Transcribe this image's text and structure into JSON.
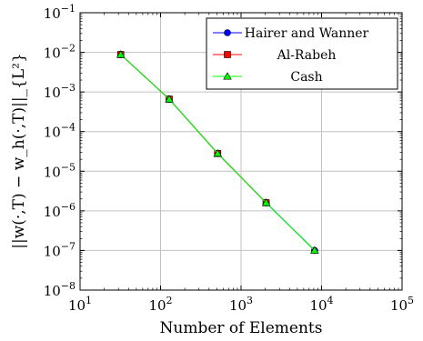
{
  "chart_data": {
    "type": "line",
    "xscale": "log",
    "yscale": "log",
    "xlabel": "Number of Elements",
    "ylabel": "||w(·,T) − w_h(·,T)||_{L²}",
    "xlim": [
      10,
      100000
    ],
    "ylim": [
      1e-08,
      0.1
    ],
    "x_ticks": [
      {
        "value": 10,
        "base": "10",
        "exp": "1"
      },
      {
        "value": 100,
        "base": "10",
        "exp": "2"
      },
      {
        "value": 1000,
        "base": "10",
        "exp": "3"
      },
      {
        "value": 10000,
        "base": "10",
        "exp": "4"
      },
      {
        "value": 100000,
        "base": "10",
        "exp": "5"
      }
    ],
    "y_ticks": [
      {
        "value": 1e-08,
        "base": "10",
        "exp": "−8"
      },
      {
        "value": 1e-07,
        "base": "10",
        "exp": "−7"
      },
      {
        "value": 1e-06,
        "base": "10",
        "exp": "−6"
      },
      {
        "value": 1e-05,
        "base": "10",
        "exp": "−5"
      },
      {
        "value": 0.0001,
        "base": "10",
        "exp": "−4"
      },
      {
        "value": 0.001,
        "base": "10",
        "exp": "−3"
      },
      {
        "value": 0.01,
        "base": "10",
        "exp": "−2"
      },
      {
        "value": 0.1,
        "base": "10",
        "exp": "−1"
      }
    ],
    "grid": true,
    "legend_position": "top-right",
    "series": [
      {
        "name": "Hairer and Wanner",
        "color": "#0000ff",
        "marker": "circle",
        "x": [
          32,
          128,
          512,
          2048,
          8192
        ],
        "y": [
          0.0088,
          0.00066,
          2.8e-05,
          1.6e-06,
          1e-07
        ]
      },
      {
        "name": "Al-Rabeh",
        "color": "#ff0000",
        "marker": "square",
        "x": [
          32,
          128,
          512,
          2048
        ],
        "y": [
          0.0088,
          0.00066,
          2.8e-05,
          1.6e-06
        ]
      },
      {
        "name": "Cash",
        "color": "#00ff00",
        "marker": "triangle",
        "x": [
          32,
          128,
          512,
          2048,
          8192
        ],
        "y": [
          0.0088,
          0.00066,
          2.8e-05,
          1.6e-06,
          1e-07
        ]
      }
    ]
  }
}
